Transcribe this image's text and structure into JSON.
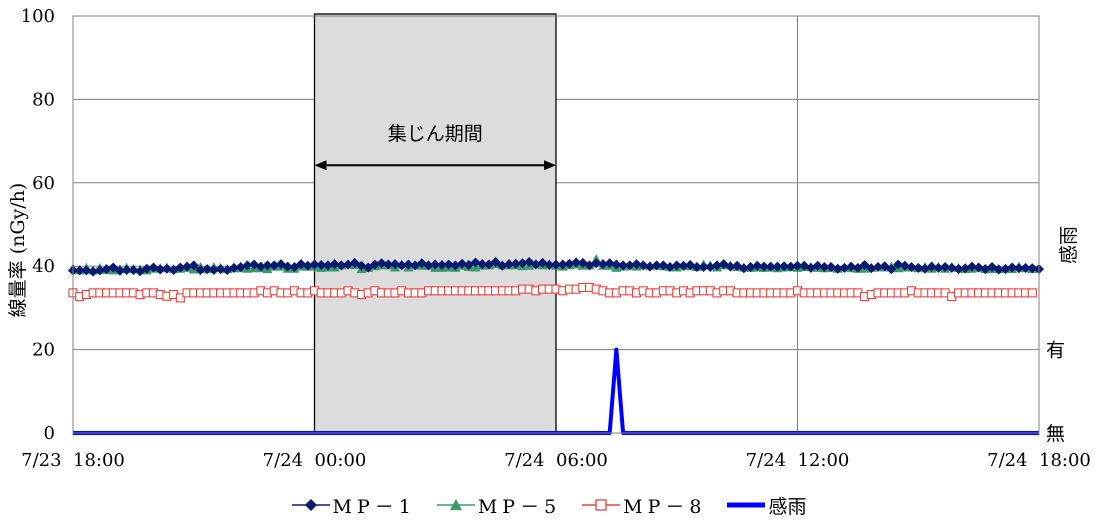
{
  "chart_data": {
    "type": "line",
    "title": "",
    "xlabel": "",
    "ylabel": "線量率 (nGy/h)",
    "y2label": "感雨",
    "ylim": [
      0,
      100
    ],
    "yticks": [
      0,
      20,
      40,
      60,
      80,
      100
    ],
    "xlim": [
      "2024-07-23 18:00",
      "2024-07-24 18:00"
    ],
    "xticks": [
      "7/23 18:00",
      "7/24 00:00",
      "7/24 06:00",
      "7/24 12:00",
      "7/24 18:00"
    ],
    "rain_levels": {
      "有": 20,
      "無": 0
    },
    "grid": true,
    "legend_position": "bottom",
    "annotation": {
      "label": "集じん期間",
      "x_start": "2024-07-24 00:00",
      "x_end": "2024-07-24 06:00"
    },
    "sample_interval_minutes": 10,
    "series": [
      {
        "name": "MP－1",
        "color": "#0a1a6e",
        "marker": "diamond",
        "values": [
          39,
          39,
          39,
          38.7,
          39,
          39.3,
          39.7,
          38.9,
          39.1,
          39.1,
          38.8,
          39.4,
          39.7,
          39.2,
          39.4,
          39.1,
          39.7,
          39.9,
          40.2,
          39.1,
          39.3,
          39.1,
          39.3,
          39.1,
          39.6,
          39.8,
          40.2,
          40.4,
          39.9,
          40.2,
          40.2,
          40.5,
          39.9,
          39.8,
          40.5,
          40.1,
          40.4,
          40.3,
          40.2,
          40.5,
          40.2,
          40.4,
          40.8,
          40.1,
          39.7,
          40.4,
          40.7,
          40.4,
          40.5,
          40.2,
          40.4,
          40.2,
          40.7,
          40.2,
          40.4,
          40.3,
          40.4,
          40.2,
          40.6,
          40.3,
          40.9,
          40.5,
          40.4,
          41,
          40.1,
          40.5,
          40.6,
          40.7,
          41,
          40.4,
          40.8,
          40.3,
          40.4,
          40.4,
          40.6,
          40.9,
          40.8,
          40.2,
          40.7,
          40.5,
          40.7,
          40.4,
          40.2,
          40.2,
          40.5,
          40.2,
          39.9,
          40.2,
          40.2,
          39.8,
          40.2,
          40.1,
          40.3,
          39.8,
          39.8,
          39.8,
          40.2,
          40.5,
          39.9,
          40.1,
          39.5,
          39.8,
          40.1,
          39.9,
          39.9,
          39.9,
          40,
          39.9,
          40.1,
          40.1,
          39.6,
          40.1,
          39.8,
          39.8,
          39.4,
          39.6,
          39.9,
          39.6,
          40.3,
          39.5,
          39.8,
          40,
          39.3,
          40.4,
          40.1,
          39.8,
          39.6,
          39.4,
          39.9,
          39.6,
          39.8,
          39.6,
          39.3,
          39.5,
          39.9,
          39.7,
          39.3,
          39.8,
          39.2,
          39.3,
          39.7,
          39.5,
          39.6,
          39.5,
          39.3
        ]
      },
      {
        "name": "MP－5",
        "color": "#3a9a6e",
        "marker": "triangle",
        "values": [
          39.5,
          39,
          39.6,
          39,
          39.6,
          39.1,
          39,
          39.3,
          39.6,
          39.3,
          39.2,
          39,
          39.4,
          39.5,
          39.7,
          39.3,
          39.4,
          39.6,
          39.2,
          39.8,
          39.3,
          39.8,
          39.6,
          39.3,
          39.5,
          39.5,
          39.4,
          39.5,
          39.5,
          39.3,
          39.9,
          39.9,
          39.4,
          39.4,
          39.9,
          39.9,
          39.9,
          39.6,
          39.7,
          39.7,
          40.2,
          40.4,
          40.3,
          39.3,
          39.6,
          40,
          40.2,
          40.2,
          39.7,
          40.4,
          39.7,
          40.2,
          40.1,
          40.1,
          39.6,
          39.6,
          39.7,
          39.6,
          40.1,
          39.8,
          39.7,
          40.1,
          40.2,
          40.5,
          40.2,
          40.2,
          40.2,
          40,
          40.1,
          40.5,
          40.2,
          40.5,
          40.1,
          39.9,
          40.2,
          40.4,
          40.1,
          40.2,
          41.7,
          40.1,
          40.1,
          39.6,
          39.9,
          40.1,
          39.9,
          40.2,
          40.1,
          40.1,
          40,
          39.8,
          39.7,
          40.1,
          40,
          39.8,
          40.4,
          40.2,
          39.7,
          40.2,
          40.2,
          39.8,
          39.7,
          39.6,
          39.7,
          39.6,
          39.7,
          39.5,
          39.7,
          39.8,
          39.6,
          39.8,
          39.8,
          39.6,
          39.5,
          39.6,
          39.4,
          39.7,
          39.5,
          39.4,
          39.4,
          39.6,
          39.9,
          39.7,
          39.9,
          39.5,
          39.7,
          39.7,
          39.5,
          39.8,
          39.4,
          39.8,
          39.4,
          39.8,
          39.6,
          39.3,
          39.4,
          39.6,
          39.3,
          39.3,
          39.3,
          39.5,
          39.3,
          39.9,
          39.5,
          39.3
        ]
      },
      {
        "name": "MP－8",
        "color": "#e84040",
        "marker": "square-open",
        "values": [
          33.6,
          32.7,
          33.2,
          33.6,
          33.6,
          33.6,
          33.6,
          33.6,
          33.6,
          33.6,
          33.2,
          33.6,
          33.6,
          33.2,
          32.8,
          33.2,
          32.4,
          33.6,
          33.6,
          33.6,
          33.6,
          33.6,
          33.6,
          33.6,
          33.6,
          33.6,
          33.6,
          33.6,
          34.1,
          33.6,
          34.1,
          33.6,
          33.6,
          34.1,
          33.6,
          33.6,
          34.1,
          33.6,
          33.6,
          33.6,
          33.6,
          34.1,
          33.6,
          33.2,
          33.6,
          34.1,
          33.6,
          33.6,
          33.6,
          34.1,
          33.6,
          33.6,
          33.6,
          34.1,
          34.1,
          34.1,
          34.1,
          34.1,
          34.1,
          34.1,
          34.1,
          34.1,
          34.1,
          34.1,
          34.1,
          34.1,
          34.1,
          34.5,
          34.5,
          34.1,
          34.5,
          34.5,
          34.5,
          34.1,
          34.5,
          34.5,
          34.9,
          34.9,
          34.5,
          34.1,
          33.6,
          33.6,
          34.1,
          34.1,
          33.6,
          34.1,
          33.6,
          33.6,
          34.1,
          34.1,
          33.6,
          34.1,
          33.6,
          34.1,
          34.1,
          34.1,
          33.6,
          34.1,
          34.1,
          33.6,
          33.6,
          33.6,
          33.6,
          33.6,
          33.6,
          33.6,
          33.6,
          33.6,
          34.1,
          33.6,
          33.6,
          33.6,
          33.6,
          33.6,
          33.6,
          33.6,
          33.6,
          33.6,
          32.7,
          33.2,
          33.6,
          33.6,
          33.6,
          33.6,
          33.6,
          34.1,
          33.6,
          33.6,
          33.6,
          33.6,
          33.6,
          32.7,
          33.6,
          33.6,
          33.6,
          33.6,
          33.6,
          33.6,
          33.6,
          33.6,
          33.6,
          33.6,
          33.6,
          33.6
        ]
      },
      {
        "name": "感雨",
        "color": "#0000ff",
        "marker": "none",
        "x": [
          "2024-07-23 18:00",
          "2024-07-24 07:20",
          "2024-07-24 07:30",
          "2024-07-24 07:40",
          "2024-07-24 18:00"
        ],
        "values": [
          0,
          0,
          20,
          0,
          0
        ]
      }
    ]
  }
}
